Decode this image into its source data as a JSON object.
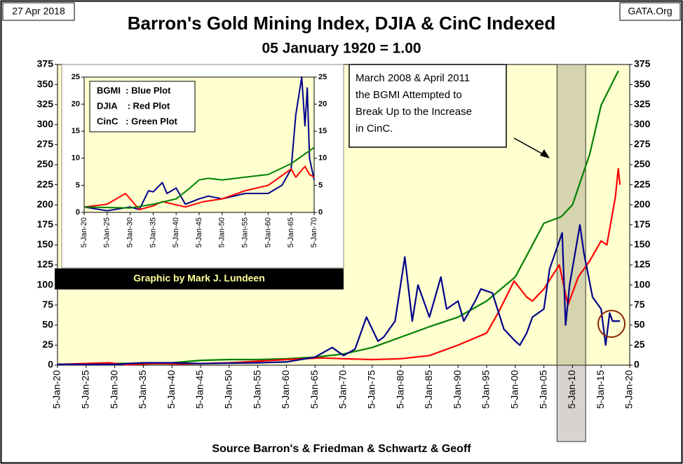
{
  "chart_data": [
    {
      "type": "line",
      "title": "Barron's Gold Mining Index, DJIA & CinC Indexed",
      "subtitle": "05 January 1920 = 1.00",
      "date": "27 Apr 2018",
      "site": "GATA.Org",
      "source": "Source Barron's & Friedman & Schwartz & Geoff",
      "annotation_lines": [
        "March 2008 & April 2011",
        "the BGMI Attempted to",
        "Break Up to the Increase",
        "in CinC."
      ],
      "highlight_x": [
        2007.3,
        2012.3
      ],
      "xlim": [
        1920,
        2020
      ],
      "xticks": [
        {
          "value": 1920,
          "label": "5-Jan-20"
        },
        {
          "value": 1925,
          "label": "5-Jan-25"
        },
        {
          "value": 1930,
          "label": "5-Jan-30"
        },
        {
          "value": 1935,
          "label": "5-Jan-35"
        },
        {
          "value": 1940,
          "label": "5-Jan-40"
        },
        {
          "value": 1945,
          "label": "5-Jan-45"
        },
        {
          "value": 1950,
          "label": "5-Jan-50"
        },
        {
          "value": 1955,
          "label": "5-Jan-55"
        },
        {
          "value": 1960,
          "label": "5-Jan-60"
        },
        {
          "value": 1965,
          "label": "5-Jan-65"
        },
        {
          "value": 1970,
          "label": "5-Jan-70"
        },
        {
          "value": 1975,
          "label": "5-Jan-75"
        },
        {
          "value": 1980,
          "label": "5-Jan-80"
        },
        {
          "value": 1985,
          "label": "5-Jan-85"
        },
        {
          "value": 1990,
          "label": "5-Jan-90"
        },
        {
          "value": 1995,
          "label": "5-Jan-95"
        },
        {
          "value": 2000,
          "label": "5-Jan-00"
        },
        {
          "value": 2005,
          "label": "5-Jan-05"
        },
        {
          "value": 2010,
          "label": "5-Jan-10"
        },
        {
          "value": 2015,
          "label": "5-Jan-15"
        },
        {
          "value": 2020,
          "label": "5-Jan-20"
        }
      ],
      "ylim": [
        0,
        375
      ],
      "yticks": [
        0,
        25,
        50,
        75,
        100,
        125,
        150,
        175,
        200,
        225,
        250,
        275,
        300,
        325,
        350,
        375
      ],
      "y2lim": [
        0,
        375
      ],
      "y2ticks": [
        0,
        25,
        50,
        75,
        100,
        125,
        150,
        175,
        200,
        225,
        250,
        275,
        300,
        325,
        350,
        375
      ],
      "series": [
        {
          "color": "#008000",
          "x": [
            1920,
            1930,
            1940,
            1945,
            1950,
            1955,
            1960,
            1965,
            1970,
            1975,
            1980,
            1985,
            1990,
            1995,
            2000,
            2003,
            2005,
            2008,
            2010,
            2013,
            2015,
            2018
          ],
          "values": [
            1,
            2,
            3,
            6,
            7,
            7,
            8,
            10,
            14,
            22,
            35,
            48,
            60,
            80,
            110,
            150,
            177,
            185,
            200,
            263,
            324,
            367
          ]
        },
        {
          "color": "#ff0000",
          "x": [
            1920,
            1929,
            1932,
            1937,
            1942,
            1950,
            1960,
            1966,
            1970,
            1975,
            1980,
            1985,
            1990,
            1995,
            1997,
            1999.8,
            2002,
            2003,
            2005,
            2007.7,
            2009.2,
            2011,
            2013,
            2015,
            2016,
            2017.5,
            2018,
            2018.3
          ],
          "values": [
            1,
            3,
            0.5,
            2,
            1.5,
            3,
            7,
            9,
            8,
            7,
            8,
            12,
            25,
            40,
            65,
            105,
            85,
            80,
            95,
            125,
            75,
            110,
            130,
            155,
            150,
            210,
            245,
            225
          ]
        },
        {
          "color": "#00008b",
          "x": [
            1920,
            1930,
            1935,
            1940,
            1945,
            1955,
            1960,
            1965,
            1968,
            1970,
            1972,
            1974,
            1976,
            1977,
            1979,
            1980.7,
            1982,
            1983,
            1985,
            1987,
            1988,
            1990,
            1991,
            1993,
            1994,
            1996,
            1998,
            2000,
            2000.8,
            2002,
            2003,
            2005,
            2006,
            2008.2,
            2008.8,
            2009.5,
            2011.3,
            2012,
            2013.5,
            2015,
            2015.8,
            2016.5,
            2017,
            2018.3
          ],
          "values": [
            1,
            1,
            3,
            3,
            2,
            3,
            4,
            10,
            22,
            12,
            20,
            60,
            30,
            35,
            55,
            135,
            55,
            100,
            60,
            110,
            70,
            80,
            55,
            80,
            95,
            90,
            45,
            30,
            25,
            40,
            60,
            70,
            120,
            165,
            50,
            100,
            175,
            140,
            85,
            70,
            25,
            65,
            55,
            55
          ]
        }
      ]
    },
    {
      "type": "line",
      "credit": "Graphic by Mark J. Lundeen",
      "xlim": [
        1920,
        1970
      ],
      "xticks": [
        {
          "value": 1920,
          "label": "5-Jan-20"
        },
        {
          "value": 1925,
          "label": "5-Jan-25"
        },
        {
          "value": 1930,
          "label": "5-Jan-30"
        },
        {
          "value": 1935,
          "label": "5-Jan-35"
        },
        {
          "value": 1940,
          "label": "5-Jan-40"
        },
        {
          "value": 1945,
          "label": "5-Jan-45"
        },
        {
          "value": 1950,
          "label": "5-Jan-50"
        },
        {
          "value": 1955,
          "label": "5-Jan-55"
        },
        {
          "value": 1960,
          "label": "5-Jan-60"
        },
        {
          "value": 1965,
          "label": "5-Jan-65"
        },
        {
          "value": 1970,
          "label": "5-Jan-70"
        }
      ],
      "ylim": [
        0,
        25
      ],
      "yticks": [
        0,
        5,
        10,
        15,
        20,
        25
      ],
      "y2lim": [
        0,
        25
      ],
      "y2ticks": [
        0,
        5,
        10,
        15,
        20,
        25
      ],
      "series": [
        {
          "name": "BGMI  : Blue Plot",
          "color": "#00008b",
          "x": [
            1920,
            1925,
            1930,
            1932,
            1934,
            1935,
            1937,
            1938,
            1940,
            1942,
            1945,
            1947,
            1950,
            1955,
            1960,
            1963,
            1965,
            1966,
            1967.3,
            1968,
            1968.5,
            1969,
            1970
          ],
          "values": [
            1,
            0.3,
            1,
            0.5,
            4,
            3.8,
            5.5,
            3.5,
            4.5,
            1.5,
            2.5,
            3,
            2.5,
            3.5,
            3.5,
            5,
            8,
            18,
            25,
            16,
            23,
            10,
            6
          ]
        },
        {
          "name": "DJIA    : Red Plot",
          "color": "#ff0000",
          "x": [
            1920,
            1925,
            1929,
            1932,
            1935,
            1937,
            1942,
            1946,
            1950,
            1955,
            1960,
            1965,
            1966,
            1968,
            1969,
            1970
          ],
          "values": [
            1,
            1.5,
            3.5,
            0.5,
            1.2,
            2,
            1,
            2,
            2.5,
            4,
            5,
            8,
            6.5,
            8.5,
            7,
            6.5
          ]
        },
        {
          "name": "CinC   : Green Plot",
          "color": "#008000",
          "x": [
            1920,
            1930,
            1935,
            1940,
            1943,
            1945,
            1947,
            1950,
            1955,
            1960,
            1965,
            1970
          ],
          "values": [
            1,
            0.8,
            1.5,
            2.5,
            4.5,
            6,
            6.3,
            6,
            6.5,
            7,
            9,
            12
          ]
        }
      ]
    }
  ]
}
